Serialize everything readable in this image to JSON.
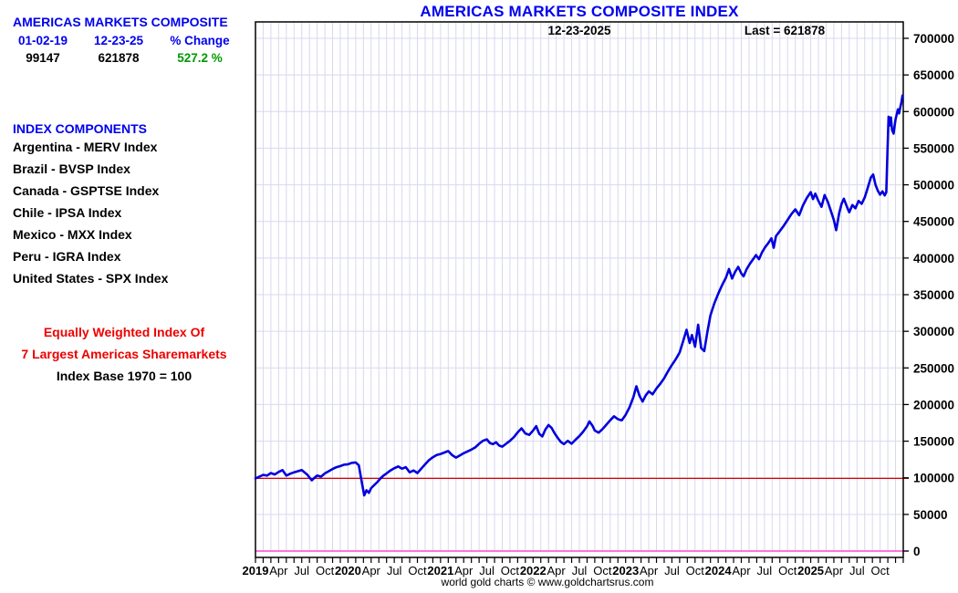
{
  "title": "AMERICAS MARKETS COMPOSITE INDEX",
  "info_panel": {
    "heading": "AMERICAS MARKETS COMPOSITE",
    "start_date": "01-02-19",
    "end_date": "12-23-25",
    "change_label": "% Change",
    "start_value": "99147",
    "end_value": "621878",
    "percent_change": "527.2 %",
    "components_heading": "INDEX COMPONENTS",
    "components": [
      "Argentina - MERV Index",
      "Brazil - BVSP Index",
      "Canada - GSPTSE Index",
      "Chile - IPSA Index",
      "Mexico - MXX Index",
      "Peru - IGRA Index",
      "United States - SPX Index"
    ],
    "note_line1": "Equally Weighted Index Of",
    "note_line2": "7 Largest Americas Sharemarkets",
    "note_line3": "Index Base 1970 = 100"
  },
  "footer": "world gold charts © www.goldchartsrus.com",
  "colors": {
    "accent_blue": "#0000EE",
    "title_blue": "#0000EE",
    "green": "#009900",
    "red_text": "#EE0000",
    "line_blue": "#0000DE",
    "ref_line_red": "#DD0000",
    "ref_line_magenta": "#FF22CC",
    "grid": "#D8D8F0",
    "axis_black": "#000000"
  },
  "chart_data": {
    "type": "line",
    "title": "AMERICAS MARKETS COMPOSITE INDEX",
    "top_center_label": "12-23-2025",
    "last_label": "Last = 621878",
    "last_value": 621878,
    "first_value": 99147,
    "xlabel": "",
    "ylabel": "",
    "ylim": [
      0,
      722000
    ],
    "x_months_total": 84,
    "x_start_year": 2019,
    "grid": {
      "x_interval_months": 1,
      "y_interval": 50000
    },
    "legend_position": "none",
    "y_ticks": [
      0,
      50000,
      100000,
      150000,
      200000,
      250000,
      300000,
      350000,
      400000,
      450000,
      500000,
      550000,
      600000,
      650000,
      700000
    ],
    "x_ticks": [
      {
        "t": 0,
        "label": "2019",
        "bold": true
      },
      {
        "t": 3,
        "label": "Apr",
        "bold": false
      },
      {
        "t": 6,
        "label": "Jul",
        "bold": false
      },
      {
        "t": 9,
        "label": "Oct",
        "bold": false
      },
      {
        "t": 12,
        "label": "2020",
        "bold": true
      },
      {
        "t": 15,
        "label": "Apr",
        "bold": false
      },
      {
        "t": 18,
        "label": "Jul",
        "bold": false
      },
      {
        "t": 21,
        "label": "Oct",
        "bold": false
      },
      {
        "t": 24,
        "label": "2021",
        "bold": true
      },
      {
        "t": 27,
        "label": "Apr",
        "bold": false
      },
      {
        "t": 30,
        "label": "Jul",
        "bold": false
      },
      {
        "t": 33,
        "label": "Oct",
        "bold": false
      },
      {
        "t": 36,
        "label": "2022",
        "bold": true
      },
      {
        "t": 39,
        "label": "Apr",
        "bold": false
      },
      {
        "t": 42,
        "label": "Jul",
        "bold": false
      },
      {
        "t": 45,
        "label": "Oct",
        "bold": false
      },
      {
        "t": 48,
        "label": "2023",
        "bold": true
      },
      {
        "t": 51,
        "label": "Apr",
        "bold": false
      },
      {
        "t": 54,
        "label": "Jul",
        "bold": false
      },
      {
        "t": 57,
        "label": "Oct",
        "bold": false
      },
      {
        "t": 60,
        "label": "2024",
        "bold": true
      },
      {
        "t": 63,
        "label": "Apr",
        "bold": false
      },
      {
        "t": 66,
        "label": "Jul",
        "bold": false
      },
      {
        "t": 69,
        "label": "Oct",
        "bold": false
      },
      {
        "t": 72,
        "label": "2025",
        "bold": true
      },
      {
        "t": 75,
        "label": "Apr",
        "bold": false
      },
      {
        "t": 78,
        "label": "Jul",
        "bold": false
      },
      {
        "t": 81,
        "label": "Oct",
        "bold": false
      }
    ],
    "reference_lines": [
      {
        "name": "start-level",
        "value": 99147,
        "color": "#DD0000"
      },
      {
        "name": "zero-level",
        "value": 0,
        "color": "#FF22CC"
      }
    ],
    "series": [
      {
        "name": "Americas Markets Composite Index",
        "color": "#0000DE",
        "points": [
          [
            0,
            99147
          ],
          [
            0.5,
            101500
          ],
          [
            1,
            104000
          ],
          [
            1.5,
            103000
          ],
          [
            2,
            106500
          ],
          [
            2.5,
            104500
          ],
          [
            3,
            108000
          ],
          [
            3.5,
            110500
          ],
          [
            4,
            103000
          ],
          [
            4.5,
            105500
          ],
          [
            5,
            107500
          ],
          [
            5.5,
            109000
          ],
          [
            6,
            110500
          ],
          [
            6.7,
            104500
          ],
          [
            7.3,
            96500
          ],
          [
            7.7,
            100500
          ],
          [
            8,
            103000
          ],
          [
            8.5,
            101500
          ],
          [
            9,
            106000
          ],
          [
            9.5,
            109000
          ],
          [
            10,
            112000
          ],
          [
            10.5,
            114500
          ],
          [
            11,
            116000
          ],
          [
            11.5,
            118000
          ],
          [
            12,
            118500
          ],
          [
            12.5,
            120500
          ],
          [
            13,
            121000
          ],
          [
            13.4,
            117000
          ],
          [
            13.7,
            99000
          ],
          [
            14.1,
            76000
          ],
          [
            14.4,
            83000
          ],
          [
            14.7,
            79500
          ],
          [
            15,
            86000
          ],
          [
            15.4,
            90000
          ],
          [
            15.8,
            94000
          ],
          [
            16.2,
            99000
          ],
          [
            16.6,
            103000
          ],
          [
            17,
            106000
          ],
          [
            17.5,
            110000
          ],
          [
            18,
            113000
          ],
          [
            18.5,
            115500
          ],
          [
            19,
            112500
          ],
          [
            19.5,
            114500
          ],
          [
            20,
            107500
          ],
          [
            20.5,
            110000
          ],
          [
            21,
            106500
          ],
          [
            21.5,
            112500
          ],
          [
            22,
            118500
          ],
          [
            22.5,
            124000
          ],
          [
            23,
            128000
          ],
          [
            23.5,
            131000
          ],
          [
            24,
            132500
          ],
          [
            24.5,
            134500
          ],
          [
            25,
            136500
          ],
          [
            25.5,
            131000
          ],
          [
            26,
            127500
          ],
          [
            26.5,
            130500
          ],
          [
            27,
            133500
          ],
          [
            27.5,
            136000
          ],
          [
            28,
            138500
          ],
          [
            28.5,
            141500
          ],
          [
            29,
            146500
          ],
          [
            29.5,
            150500
          ],
          [
            30,
            152500
          ],
          [
            30.4,
            147500
          ],
          [
            30.8,
            146000
          ],
          [
            31.2,
            148500
          ],
          [
            31.6,
            144000
          ],
          [
            32,
            142500
          ],
          [
            32.5,
            146500
          ],
          [
            33,
            150500
          ],
          [
            33.5,
            155500
          ],
          [
            34,
            162000
          ],
          [
            34.5,
            167500
          ],
          [
            35,
            160500
          ],
          [
            35.5,
            158500
          ],
          [
            36,
            164500
          ],
          [
            36.4,
            170500
          ],
          [
            36.8,
            160000
          ],
          [
            37.2,
            156500
          ],
          [
            37.6,
            166000
          ],
          [
            38,
            172000
          ],
          [
            38.4,
            168000
          ],
          [
            38.8,
            160500
          ],
          [
            39.2,
            154500
          ],
          [
            39.6,
            149000
          ],
          [
            40,
            146000
          ],
          [
            40.5,
            150500
          ],
          [
            41,
            146500
          ],
          [
            41.5,
            152000
          ],
          [
            42,
            157000
          ],
          [
            42.5,
            163000
          ],
          [
            43,
            170500
          ],
          [
            43.3,
            177000
          ],
          [
            43.7,
            171000
          ],
          [
            44,
            164500
          ],
          [
            44.5,
            161500
          ],
          [
            45,
            166500
          ],
          [
            45.5,
            172500
          ],
          [
            46,
            178500
          ],
          [
            46.5,
            184000
          ],
          [
            47,
            180000
          ],
          [
            47.5,
            178500
          ],
          [
            48,
            186000
          ],
          [
            48.5,
            196000
          ],
          [
            49,
            210000
          ],
          [
            49.4,
            225000
          ],
          [
            49.8,
            212000
          ],
          [
            50.2,
            204000
          ],
          [
            50.6,
            212500
          ],
          [
            51,
            218000
          ],
          [
            51.5,
            214000
          ],
          [
            52,
            222000
          ],
          [
            52.5,
            228500
          ],
          [
            53,
            236000
          ],
          [
            53.5,
            245500
          ],
          [
            54,
            254000
          ],
          [
            54.5,
            262000
          ],
          [
            55,
            271000
          ],
          [
            55.5,
            288000
          ],
          [
            55.9,
            302000
          ],
          [
            56.3,
            284000
          ],
          [
            56.6,
            295000
          ],
          [
            57,
            279000
          ],
          [
            57.4,
            309000
          ],
          [
            57.8,
            277000
          ],
          [
            58.2,
            273000
          ],
          [
            58.6,
            299000
          ],
          [
            59,
            322000
          ],
          [
            59.5,
            338000
          ],
          [
            60,
            351000
          ],
          [
            60.5,
            363000
          ],
          [
            61,
            373000
          ],
          [
            61.4,
            385000
          ],
          [
            61.8,
            372000
          ],
          [
            62.2,
            381000
          ],
          [
            62.6,
            388000
          ],
          [
            63,
            379000
          ],
          [
            63.3,
            375000
          ],
          [
            63.7,
            385000
          ],
          [
            64.1,
            392000
          ],
          [
            64.5,
            398000
          ],
          [
            64.9,
            404000
          ],
          [
            65.3,
            398500
          ],
          [
            65.7,
            408000
          ],
          [
            66.1,
            415000
          ],
          [
            66.5,
            420500
          ],
          [
            66.9,
            427000
          ],
          [
            67.2,
            414000
          ],
          [
            67.5,
            430000
          ],
          [
            68,
            437000
          ],
          [
            68.5,
            444000
          ],
          [
            69,
            452000
          ],
          [
            69.5,
            460000
          ],
          [
            70,
            466500
          ],
          [
            70.5,
            458500
          ],
          [
            71,
            472000
          ],
          [
            71.5,
            482000
          ],
          [
            72,
            490000
          ],
          [
            72.3,
            480500
          ],
          [
            72.6,
            488000
          ],
          [
            73,
            478000
          ],
          [
            73.4,
            470000
          ],
          [
            73.8,
            486000
          ],
          [
            74.2,
            477000
          ],
          [
            74.6,
            465000
          ],
          [
            75,
            452000
          ],
          [
            75.3,
            438000
          ],
          [
            75.7,
            461500
          ],
          [
            76,
            474000
          ],
          [
            76.3,
            481000
          ],
          [
            76.7,
            470000
          ],
          [
            77,
            462500
          ],
          [
            77.4,
            472500
          ],
          [
            77.8,
            468000
          ],
          [
            78.2,
            478000
          ],
          [
            78.6,
            474000
          ],
          [
            79,
            482500
          ],
          [
            79.4,
            496000
          ],
          [
            79.8,
            510000
          ],
          [
            80.1,
            514000
          ],
          [
            80.4,
            500000
          ],
          [
            80.7,
            492000
          ],
          [
            81,
            486500
          ],
          [
            81.3,
            491000
          ],
          [
            81.6,
            485500
          ],
          [
            81.8,
            490000
          ],
          [
            81.95,
            545000
          ],
          [
            82.1,
            593000
          ],
          [
            82.25,
            581000
          ],
          [
            82.4,
            592000
          ],
          [
            82.55,
            575000
          ],
          [
            82.75,
            570000
          ],
          [
            83,
            589000
          ],
          [
            83.15,
            596000
          ],
          [
            83.3,
            603000
          ],
          [
            83.45,
            597500
          ],
          [
            83.6,
            605000
          ],
          [
            83.75,
            612000
          ],
          [
            83.9,
            621878
          ]
        ]
      }
    ]
  }
}
